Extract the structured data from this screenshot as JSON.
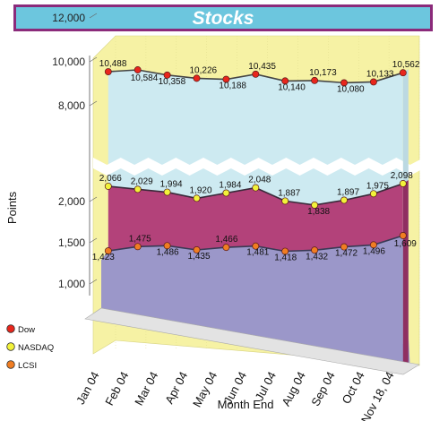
{
  "chart_data": {
    "type": "area",
    "title": "Stocks",
    "xlabel": "Month End",
    "ylabel": "Points",
    "categories": [
      "Jan 04",
      "Feb 04",
      "Mar 04",
      "Apr 04",
      "May 04",
      "Jun 04",
      "Jul 04",
      "Aug 04",
      "Sep 04",
      "Oct 04",
      "Nov 18, 04"
    ],
    "axis_break": {
      "lower_to": 2000,
      "upper_from": 8000
    },
    "y_ticks": [
      {
        "value": 12000,
        "label": "12,000"
      },
      {
        "value": 10000,
        "label": "10,000"
      },
      {
        "value": 8000,
        "label": "8,000"
      },
      {
        "value": 2000,
        "label": "2,000"
      },
      {
        "value": 1500,
        "label": "1,500"
      },
      {
        "value": 1000,
        "label": "1,000"
      }
    ],
    "series": [
      {
        "name": "Dow",
        "color": "#e8261c",
        "fill": "#cdeaf1",
        "values": [
          10488,
          10584,
          10358,
          10226,
          10188,
          10435,
          10140,
          10173,
          10080,
          10133,
          10562
        ],
        "labels": [
          "10,488",
          "10,584",
          "10,358",
          "10,226",
          "10,188",
          "10,435",
          "10,140",
          "10,173",
          "10,080",
          "10,133",
          "10,562"
        ]
      },
      {
        "name": "NASDAQ",
        "color": "#f2f23a",
        "fill": "#b3427a",
        "values": [
          2066,
          2029,
          1994,
          1920,
          1984,
          2048,
          1887,
          1838,
          1897,
          1975,
          2098
        ],
        "labels": [
          "2,066",
          "2,029",
          "1,994",
          "1,920",
          "1,984",
          "2,048",
          "1,887",
          "1,838",
          "1,897",
          "1,975",
          "2,098"
        ]
      },
      {
        "name": "LCSI",
        "color": "#f07d22",
        "fill": "#9b97c9",
        "values": [
          1423,
          1475,
          1486,
          1435,
          1466,
          1481,
          1418,
          1432,
          1472,
          1496,
          1609
        ],
        "labels": [
          "1,423",
          "1,475",
          "1,486",
          "1,435",
          "1,466",
          "1,481",
          "1,418",
          "1,432",
          "1,472",
          "1,496",
          "1,609"
        ]
      }
    ],
    "legend_position": "bottom-left",
    "grid": false,
    "wall_color": "#f6f2a4"
  }
}
